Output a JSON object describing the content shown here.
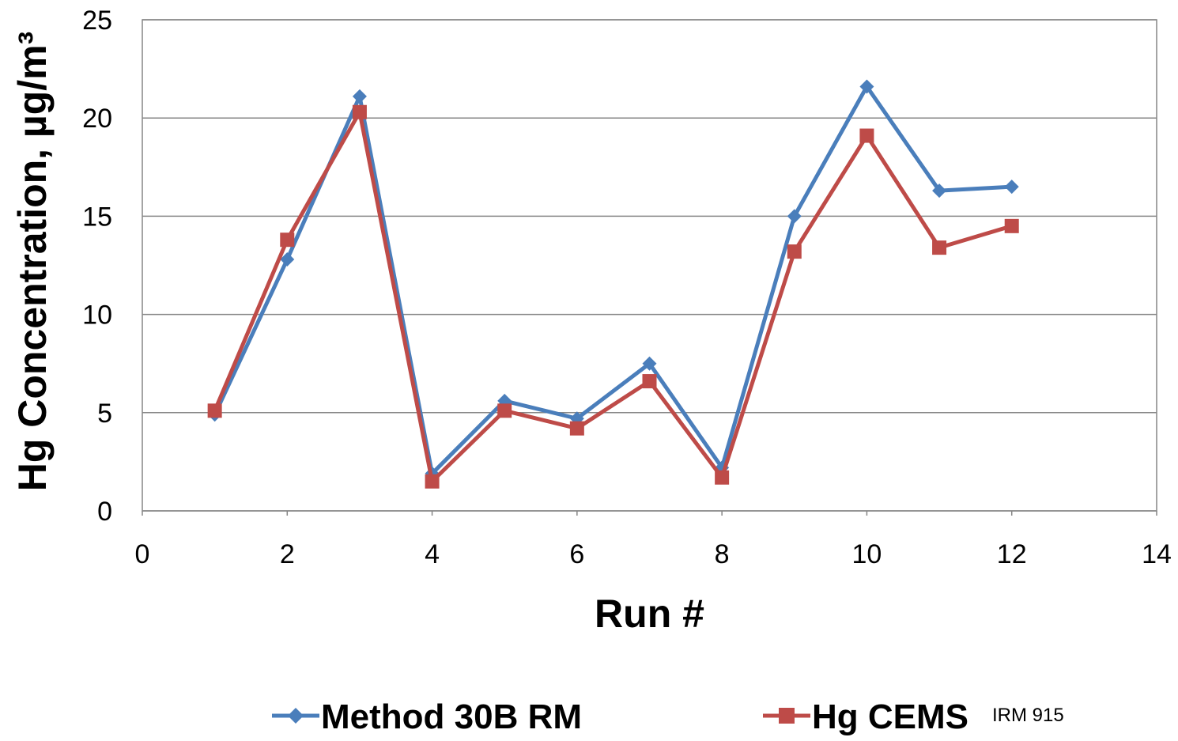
{
  "chart_data": {
    "type": "line",
    "xlabel": "Run #",
    "ylabel": "Hg Concentration, µg/m³",
    "xlim": [
      0,
      14
    ],
    "ylim": [
      0,
      25
    ],
    "xticks": [
      0,
      2,
      4,
      6,
      8,
      10,
      12,
      14
    ],
    "yticks": [
      0,
      5,
      10,
      15,
      20,
      25
    ],
    "grid": "horizontal",
    "legend_position": "bottom",
    "series": [
      {
        "name": "Method 30B RM",
        "color": "#4a7ebb",
        "marker": "diamond",
        "x": [
          1,
          2,
          3,
          4,
          5,
          6,
          7,
          8,
          9,
          10,
          11,
          12
        ],
        "y": [
          4.9,
          12.8,
          21.1,
          1.9,
          5.6,
          4.7,
          7.5,
          2.2,
          15.0,
          21.6,
          16.3,
          16.5
        ]
      },
      {
        "name": "Hg CEMS",
        "color": "#be4b48",
        "marker": "square",
        "x": [
          1,
          2,
          3,
          4,
          5,
          6,
          7,
          8,
          9,
          10,
          11,
          12
        ],
        "y": [
          5.1,
          13.8,
          20.3,
          1.5,
          5.1,
          4.2,
          6.6,
          1.7,
          13.2,
          19.1,
          13.4,
          14.5
        ]
      }
    ],
    "annotation": "IRM 915"
  }
}
